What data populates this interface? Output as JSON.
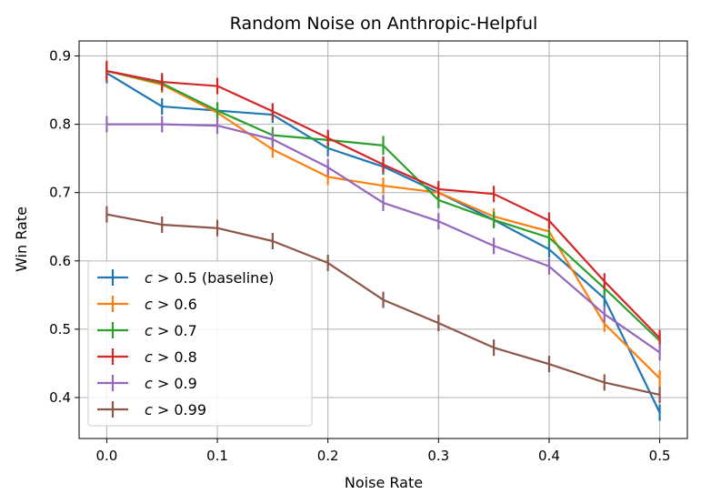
{
  "chart_data": {
    "type": "line",
    "title": "Random Noise on Anthropic-Helpful",
    "xlabel": "Noise Rate",
    "ylabel": "Win Rate",
    "xlim": [
      -0.025,
      0.525
    ],
    "ylim": [
      0.34,
      0.922
    ],
    "xticks": [
      0.0,
      0.1,
      0.2,
      0.3,
      0.4,
      0.5
    ],
    "xtick_labels": [
      "0.0",
      "0.1",
      "0.2",
      "0.3",
      "0.4",
      "0.5"
    ],
    "yticks": [
      0.4,
      0.5,
      0.6,
      0.7,
      0.8,
      0.9
    ],
    "ytick_labels": [
      "0.4",
      "0.5",
      "0.6",
      "0.7",
      "0.8",
      "0.9"
    ],
    "grid": true,
    "legend_position": "lower-left",
    "x": [
      0.0,
      0.05,
      0.1,
      0.15,
      0.2,
      0.25,
      0.3,
      0.35,
      0.4,
      0.45,
      0.5
    ],
    "series": [
      {
        "name": "c > 0.5 (baseline)",
        "label_main": "c",
        "label_rest": " > 0.5 (baseline)",
        "color": "#1f77b4",
        "values": [
          0.875,
          0.826,
          0.82,
          0.814,
          0.765,
          0.738,
          0.7,
          0.66,
          0.617,
          0.545,
          0.378
        ],
        "errors": [
          0.015,
          0.012,
          0.012,
          0.012,
          0.012,
          0.012,
          0.012,
          0.012,
          0.012,
          0.012,
          0.012
        ]
      },
      {
        "name": "c > 0.6",
        "label_main": "c",
        "label_rest": " > 0.6",
        "color": "#ff7f0e",
        "values": [
          0.878,
          0.858,
          0.817,
          0.763,
          0.723,
          0.71,
          0.7,
          0.665,
          0.643,
          0.508,
          0.428
        ],
        "errors": [
          0.012,
          0.012,
          0.012,
          0.012,
          0.012,
          0.012,
          0.012,
          0.012,
          0.012,
          0.012,
          0.012
        ]
      },
      {
        "name": "c > 0.7",
        "label_main": "c",
        "label_rest": " > 0.7",
        "color": "#2ca02c",
        "values": [
          0.878,
          0.86,
          0.82,
          0.784,
          0.777,
          0.769,
          0.689,
          0.66,
          0.634,
          0.56,
          0.483
        ],
        "errors": [
          0.012,
          0.012,
          0.012,
          0.012,
          0.012,
          0.014,
          0.012,
          0.012,
          0.012,
          0.012,
          0.012
        ]
      },
      {
        "name": "c > 0.8",
        "label_main": "c",
        "label_rest": " > 0.8",
        "color": "#d62728",
        "values": [
          0.878,
          0.862,
          0.856,
          0.819,
          0.78,
          0.741,
          0.705,
          0.698,
          0.659,
          0.57,
          0.487
        ],
        "errors": [
          0.015,
          0.013,
          0.012,
          0.012,
          0.012,
          0.012,
          0.012,
          0.012,
          0.012,
          0.012,
          0.012
        ]
      },
      {
        "name": "c > 0.9",
        "label_main": "c",
        "label_rest": " > 0.9",
        "color": "#9467bd",
        "values": [
          0.8,
          0.8,
          0.798,
          0.778,
          0.737,
          0.685,
          0.658,
          0.622,
          0.592,
          0.522,
          0.466
        ],
        "errors": [
          0.012,
          0.012,
          0.012,
          0.012,
          0.012,
          0.012,
          0.012,
          0.012,
          0.012,
          0.012,
          0.012
        ]
      },
      {
        "name": "c > 0.99",
        "label_main": "c",
        "label_rest": " > 0.99",
        "color": "#8c564b",
        "values": [
          0.668,
          0.653,
          0.648,
          0.629,
          0.597,
          0.543,
          0.509,
          0.473,
          0.449,
          0.422,
          0.404
        ],
        "errors": [
          0.012,
          0.012,
          0.012,
          0.012,
          0.012,
          0.012,
          0.012,
          0.012,
          0.012,
          0.012,
          0.012
        ]
      }
    ]
  }
}
